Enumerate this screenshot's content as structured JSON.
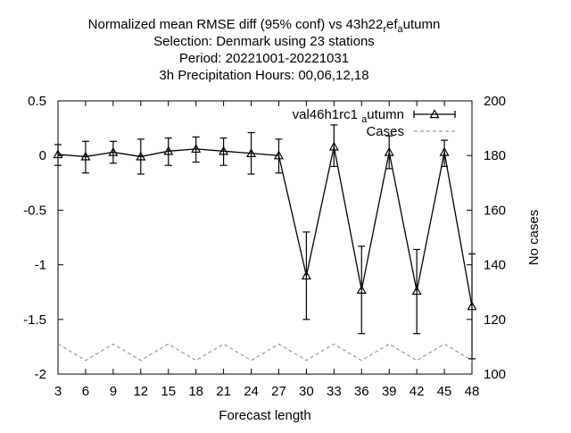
{
  "chart_data": {
    "type": "line",
    "title_lines": [
      {
        "text": "Normalized mean RMSE diff (95% conf) vs 43h22",
        "sub": "r",
        "mid": "ef",
        "sub2": "a",
        "tail": "utumn"
      },
      {
        "text": "Selection: Denmark using    23 stations"
      },
      {
        "text": "Period: 20221001-20221031"
      },
      {
        "text": "3h Precipitation   Hours:  00,06,12,18"
      }
    ],
    "xlabel": "Forecast length",
    "ylabel": "",
    "y2label": "No cases",
    "xlim": [
      3,
      48
    ],
    "ylim": [
      -2,
      0.5
    ],
    "y2lim": [
      100,
      200
    ],
    "xticks": [
      3,
      6,
      9,
      12,
      15,
      18,
      21,
      24,
      27,
      30,
      33,
      36,
      39,
      42,
      45,
      48
    ],
    "yticks": [
      0.5,
      0,
      -0.5,
      -1,
      -1.5,
      -2
    ],
    "ytick_labels": [
      "0.5",
      "0",
      "-0.5",
      "-1",
      "-1.5",
      "-2"
    ],
    "y2ticks": [
      200,
      180,
      160,
      140,
      120,
      100
    ],
    "legend_position": "top-right",
    "grid": false,
    "series": [
      {
        "name": "val46h1rc1",
        "name_sub": "a",
        "name_tail": "utumn",
        "axis": "y",
        "color": "#000000",
        "marker": "triangle",
        "x": [
          3,
          6,
          9,
          12,
          15,
          18,
          21,
          24,
          27,
          30,
          33,
          36,
          39,
          42,
          45,
          48
        ],
        "y": [
          0.01,
          -0.01,
          0.03,
          -0.01,
          0.04,
          0.06,
          0.04,
          0.02,
          0.0,
          -1.1,
          0.08,
          -1.23,
          0.03,
          -1.24,
          0.03,
          -1.38
        ],
        "err_low": [
          -0.09,
          -0.16,
          -0.07,
          -0.17,
          -0.09,
          -0.06,
          -0.09,
          -0.17,
          -0.16,
          -1.5,
          -0.1,
          -1.63,
          -0.12,
          -1.63,
          -0.1,
          -1.86
        ],
        "err_high": [
          0.1,
          0.13,
          0.13,
          0.15,
          0.16,
          0.17,
          0.16,
          0.21,
          0.15,
          -0.7,
          0.28,
          -0.83,
          0.18,
          -0.86,
          0.14,
          -0.9
        ]
      },
      {
        "name": "Cases",
        "axis": "y2",
        "color": "#999999",
        "dash": true,
        "x": [
          3,
          6,
          9,
          12,
          15,
          18,
          21,
          24,
          27,
          30,
          33,
          36,
          39,
          42,
          45,
          48
        ],
        "y": [
          111,
          105,
          111,
          105,
          111,
          105,
          111,
          105,
          111,
          105,
          111,
          105,
          111,
          105,
          111,
          105
        ]
      }
    ]
  }
}
